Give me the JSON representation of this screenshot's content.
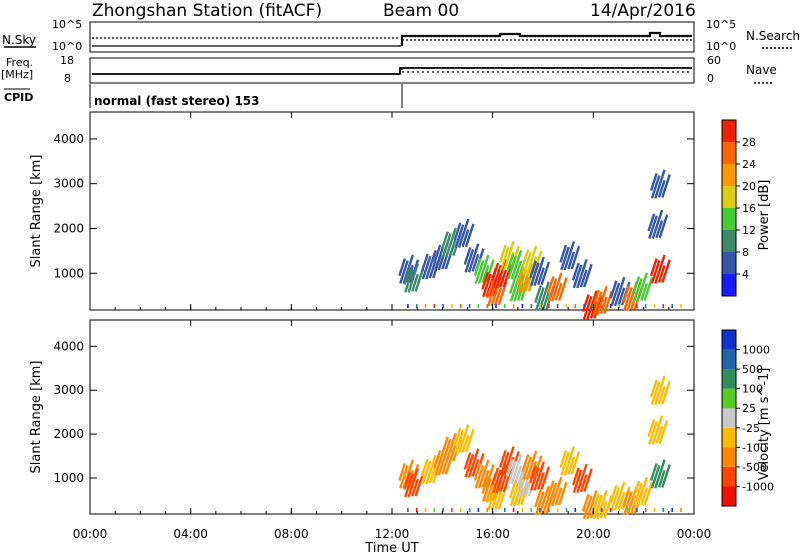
{
  "header": {
    "title": "Zhongshan Station (fitACF)",
    "beam": "Beam 00",
    "date": "14/Apr/2016"
  },
  "status_panels": {
    "nsky_label": "N.Sky",
    "nsearch_label": "N.Search",
    "nsky_ticks": [
      "10^5",
      "10^0"
    ],
    "nsearch_ticks": [
      "10^5",
      "10^0"
    ],
    "freq_label": "Freq.",
    "freq_unit": "[MHz]",
    "freq_ticks": [
      "18",
      "8"
    ],
    "nave_label": "Nave",
    "nave_ticks": [
      "60",
      "0"
    ],
    "cpid_label": "CPID",
    "cpid_text": "normal (fast stereo) 153"
  },
  "colors": {
    "power": [
      "#1a1aff",
      "#3355aa",
      "#3a8a6a",
      "#44cc33",
      "#ddcc11",
      "#ff9900",
      "#ff6600",
      "#ee2200"
    ],
    "velocity": [
      "#ee1100",
      "#ff4400",
      "#ff8800",
      "#ffbb00",
      "#c8c8c8",
      "#55cc22",
      "#2f8f5a",
      "#2266aa",
      "#1133cc"
    ]
  },
  "chart_data": [
    {
      "type": "heatmap",
      "panel": "power",
      "ylabel": "Slant Range [km]",
      "yticks": [
        1000,
        2000,
        3000,
        4000
      ],
      "ylim": [
        180,
        4600
      ],
      "xlim_hours": [
        0,
        24
      ],
      "colorbar_label": "Power [dB]",
      "colorbar_ticks": [
        "4",
        "8",
        "12",
        "16",
        "20",
        "24",
        "28"
      ],
      "clusters": [
        {
          "t": 12.6,
          "r": 1100,
          "c": 1
        },
        {
          "t": 12.8,
          "r": 900,
          "c": 2
        },
        {
          "t": 13.5,
          "r": 1200,
          "c": 1
        },
        {
          "t": 14.0,
          "r": 1400,
          "c": 1
        },
        {
          "t": 14.3,
          "r": 1700,
          "c": 2
        },
        {
          "t": 14.8,
          "r": 1900,
          "c": 1
        },
        {
          "t": 15.2,
          "r": 1350,
          "c": 1
        },
        {
          "t": 15.6,
          "r": 1100,
          "c": 3
        },
        {
          "t": 15.9,
          "r": 800,
          "c": 7
        },
        {
          "t": 16.1,
          "r": 600,
          "c": 6
        },
        {
          "t": 16.3,
          "r": 1000,
          "c": 7
        },
        {
          "t": 16.6,
          "r": 1400,
          "c": 4
        },
        {
          "t": 16.9,
          "r": 1200,
          "c": 3
        },
        {
          "t": 17.0,
          "r": 700,
          "c": 3
        },
        {
          "t": 17.3,
          "r": 900,
          "c": 5
        },
        {
          "t": 17.5,
          "r": 1300,
          "c": 4
        },
        {
          "t": 17.8,
          "r": 1050,
          "c": 1
        },
        {
          "t": 18.0,
          "r": 500,
          "c": 2
        },
        {
          "t": 18.5,
          "r": 700,
          "c": 6
        },
        {
          "t": 19.0,
          "r": 1400,
          "c": 1
        },
        {
          "t": 19.5,
          "r": 1000,
          "c": 1
        },
        {
          "t": 19.9,
          "r": 300,
          "c": 7
        },
        {
          "t": 20.3,
          "r": 400,
          "c": 6
        },
        {
          "t": 21.0,
          "r": 600,
          "c": 1
        },
        {
          "t": 21.5,
          "r": 500,
          "c": 6
        },
        {
          "t": 21.9,
          "r": 700,
          "c": 3
        },
        {
          "t": 22.6,
          "r": 1100,
          "c": 7
        },
        {
          "t": 22.5,
          "r": 2100,
          "c": 1
        },
        {
          "t": 22.6,
          "r": 3000,
          "c": 1
        }
      ]
    },
    {
      "type": "heatmap",
      "panel": "velocity",
      "ylabel": "Slant Range [km]",
      "yticks": [
        1000,
        2000,
        3000,
        4000
      ],
      "ylim": [
        180,
        4600
      ],
      "xlim_hours": [
        0,
        24
      ],
      "xticks": [
        "00:00",
        "04:00",
        "08:00",
        "12:00",
        "16:00",
        "20:00",
        "00:00"
      ],
      "xlabel": "Time UT",
      "colorbar_label": "Velocity [m s^-1]",
      "colorbar_ticks": [
        "-1000",
        "-500",
        "-100",
        "-25",
        "25",
        "100",
        "500",
        "1000"
      ],
      "clusters": [
        {
          "t": 12.6,
          "r": 1100,
          "c": 2
        },
        {
          "t": 12.8,
          "r": 900,
          "c": 1
        },
        {
          "t": 13.5,
          "r": 1200,
          "c": 3
        },
        {
          "t": 14.0,
          "r": 1400,
          "c": 2
        },
        {
          "t": 14.3,
          "r": 1700,
          "c": 2
        },
        {
          "t": 14.8,
          "r": 1900,
          "c": 3
        },
        {
          "t": 15.2,
          "r": 1350,
          "c": 1
        },
        {
          "t": 15.6,
          "r": 1100,
          "c": 2
        },
        {
          "t": 15.9,
          "r": 800,
          "c": 2
        },
        {
          "t": 16.1,
          "r": 600,
          "c": 3
        },
        {
          "t": 16.3,
          "r": 1000,
          "c": 1
        },
        {
          "t": 16.6,
          "r": 1400,
          "c": 1
        },
        {
          "t": 16.9,
          "r": 1200,
          "c": 4
        },
        {
          "t": 17.0,
          "r": 700,
          "c": 3
        },
        {
          "t": 17.3,
          "r": 900,
          "c": 4
        },
        {
          "t": 17.5,
          "r": 1300,
          "c": 2
        },
        {
          "t": 17.8,
          "r": 1050,
          "c": 1
        },
        {
          "t": 18.0,
          "r": 500,
          "c": 2
        },
        {
          "t": 18.5,
          "r": 700,
          "c": 2
        },
        {
          "t": 19.0,
          "r": 1400,
          "c": 3
        },
        {
          "t": 19.5,
          "r": 1000,
          "c": 1
        },
        {
          "t": 19.9,
          "r": 400,
          "c": 2
        },
        {
          "t": 20.3,
          "r": 400,
          "c": 3
        },
        {
          "t": 21.0,
          "r": 600,
          "c": 3
        },
        {
          "t": 21.5,
          "r": 500,
          "c": 2
        },
        {
          "t": 21.9,
          "r": 700,
          "c": 3
        },
        {
          "t": 22.6,
          "r": 1100,
          "c": 6
        },
        {
          "t": 22.5,
          "r": 2100,
          "c": 3
        },
        {
          "t": 22.6,
          "r": 3000,
          "c": 3
        }
      ]
    }
  ]
}
